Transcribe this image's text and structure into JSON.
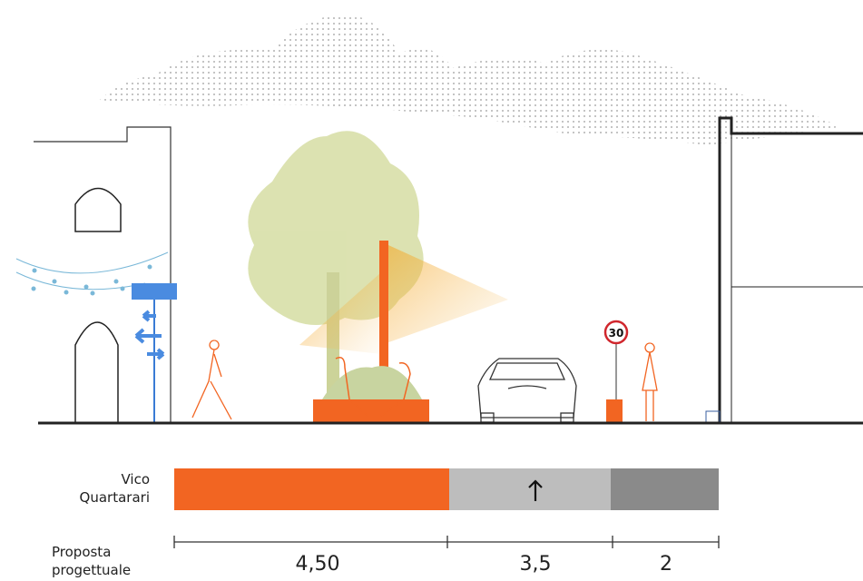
{
  "street_name": [
    "Vico",
    "Quartarari"
  ],
  "speed_sign": "30",
  "proposal_label": [
    "Proposta",
    "progettuale"
  ],
  "dimensions": [
    "4,50",
    "3,5",
    "2"
  ]
}
